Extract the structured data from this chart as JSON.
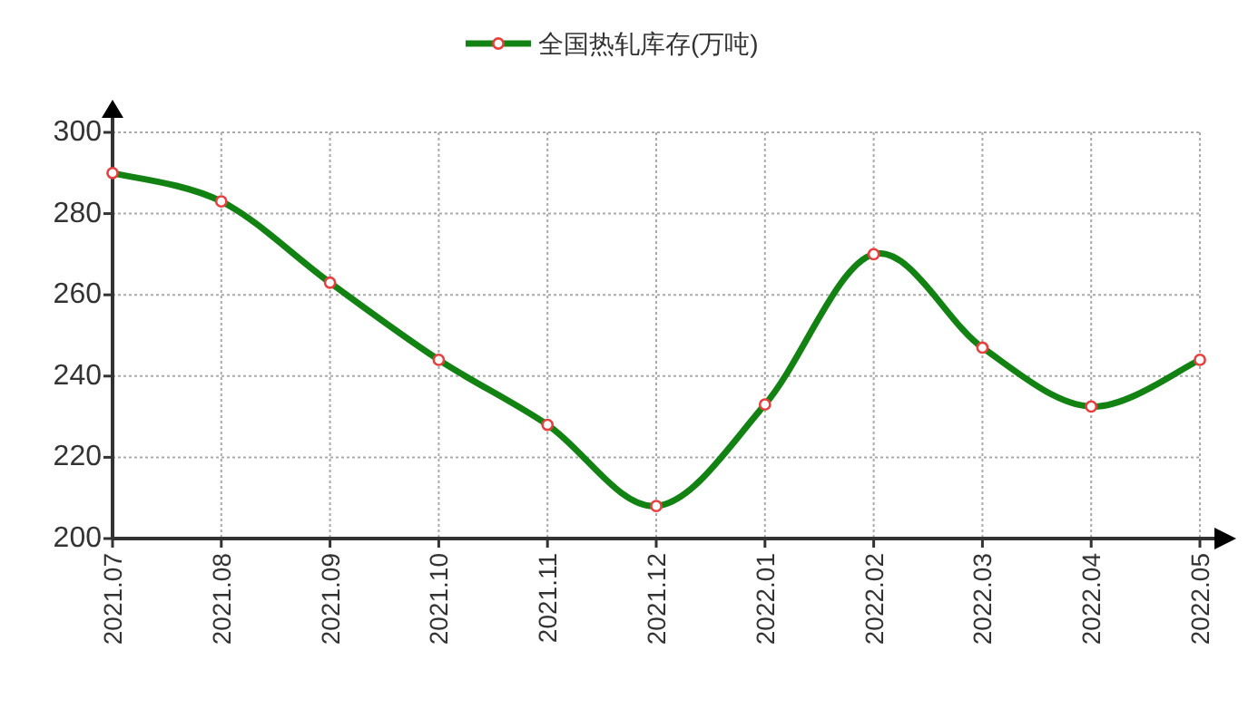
{
  "chart_data": {
    "type": "line",
    "categories": [
      "2021.07",
      "2021.08",
      "2021.09",
      "2021.10",
      "2021.11",
      "2021.12",
      "2022.01",
      "2022.02",
      "2022.03",
      "2022.04",
      "2022.05"
    ],
    "series": [
      {
        "name": "全国热轧库存(万吨)",
        "color": "#128212",
        "values": [
          290,
          283,
          263,
          244,
          228,
          208,
          233,
          270,
          247,
          232.5,
          244
        ]
      }
    ],
    "ylim": [
      200,
      300
    ],
    "yticks": [
      200,
      220,
      240,
      260,
      280,
      300
    ],
    "grid": true,
    "legend": "top",
    "marker": "circle",
    "line_style": "solid"
  }
}
